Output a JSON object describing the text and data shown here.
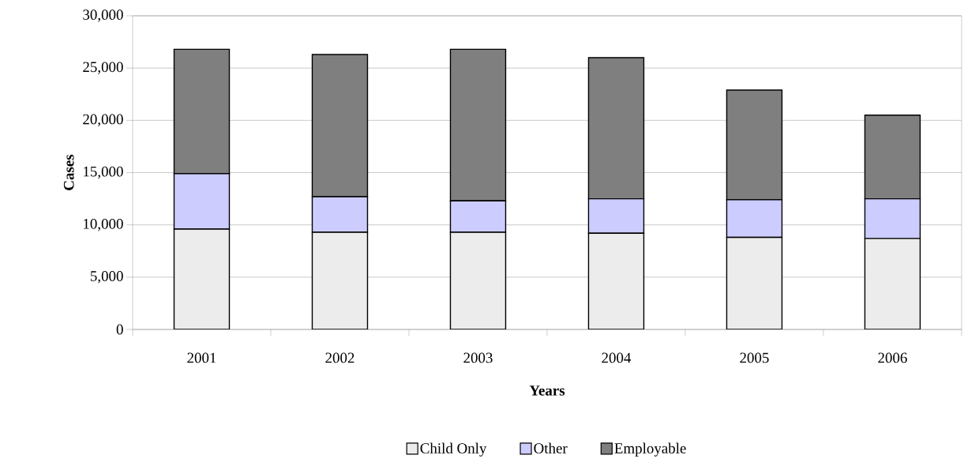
{
  "chart_data": {
    "type": "bar",
    "stacked": true,
    "xlabel": "Years",
    "ylabel": "Cases",
    "categories": [
      "2001",
      "2002",
      "2003",
      "2004",
      "2005",
      "2006"
    ],
    "series": [
      {
        "name": "Child Only",
        "color": "#ececec",
        "values": [
          9600,
          9300,
          9300,
          9200,
          8800,
          8700
        ]
      },
      {
        "name": "Other",
        "color": "#ccccff",
        "values": [
          5300,
          3400,
          3000,
          3300,
          3600,
          3800
        ]
      },
      {
        "name": "Employable",
        "color": "#7f7f7f",
        "values": [
          11900,
          13600,
          14500,
          13500,
          10500,
          8000
        ]
      }
    ],
    "ylim": [
      0,
      30000
    ],
    "yticks": [
      0,
      {
        "value": 5000,
        "label": "5,000"
      },
      {
        "value": 10000,
        "label": "10,000"
      },
      {
        "value": 15000,
        "label": "15,000"
      },
      {
        "value": 20000,
        "label": "20,000"
      },
      {
        "value": 25000,
        "label": "25,000"
      },
      {
        "value": 30000,
        "label": "30,000"
      }
    ],
    "grid": "y",
    "legend": "bottom"
  }
}
